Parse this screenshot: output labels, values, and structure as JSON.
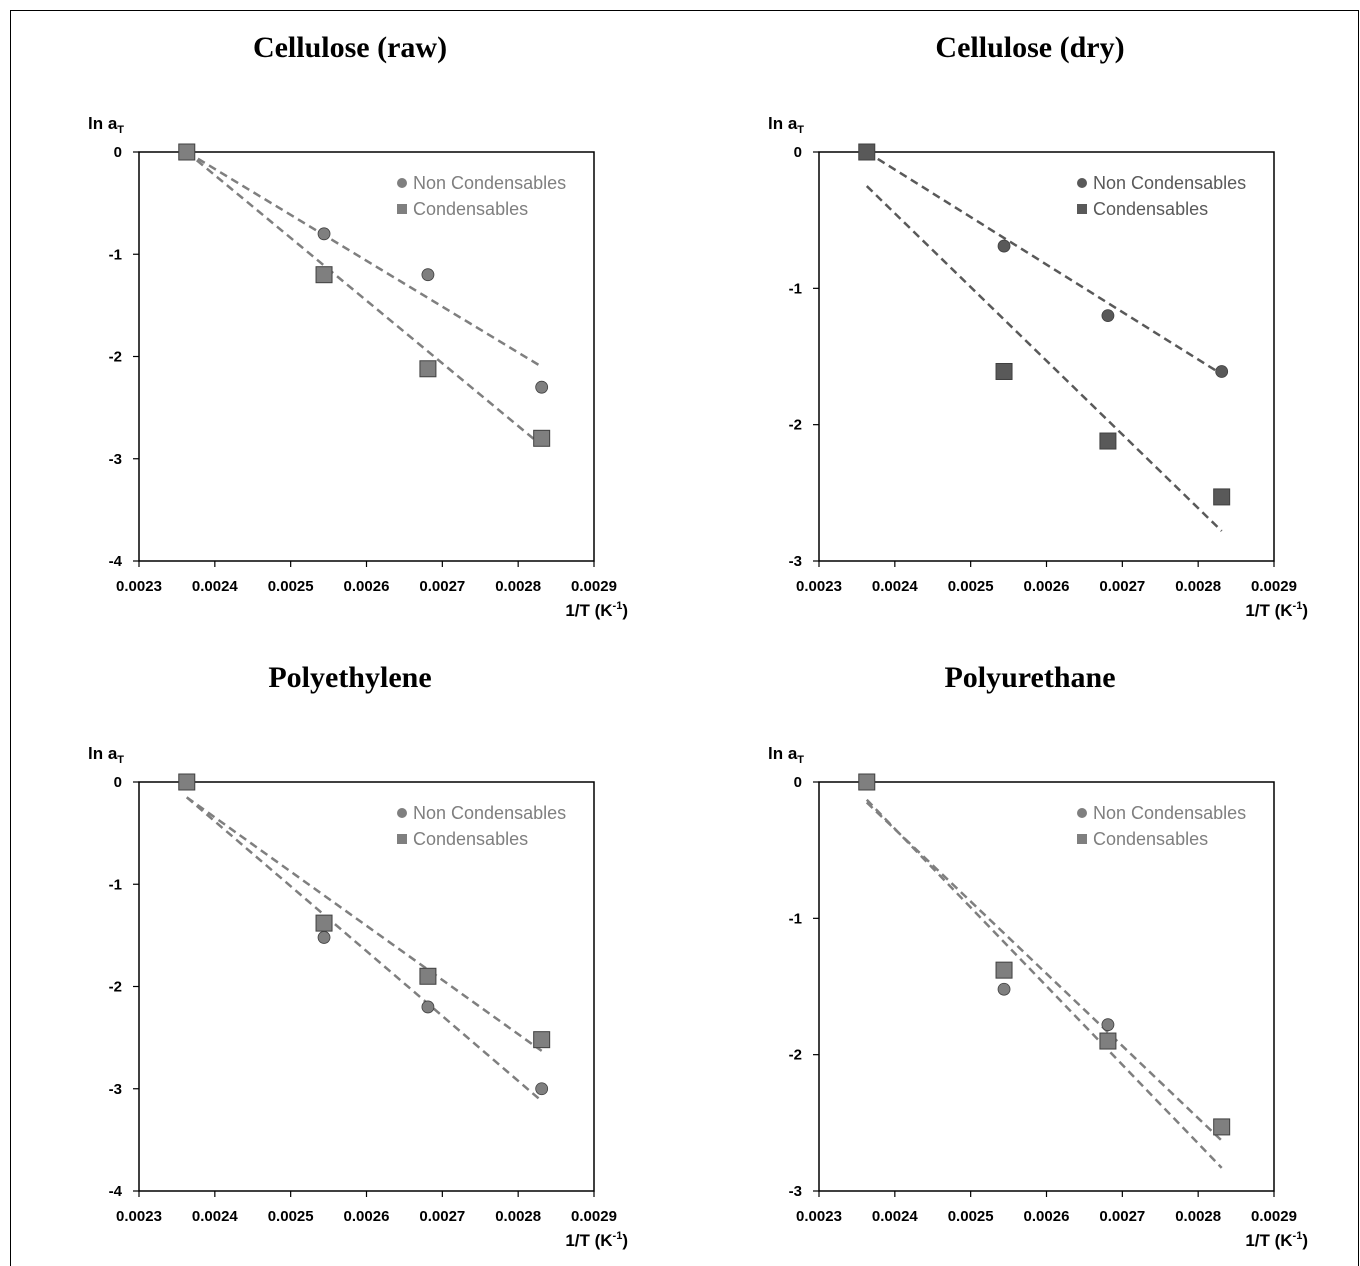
{
  "chart_data": [
    {
      "type": "scatter",
      "title": "Cellulose (raw)",
      "ylabel": "ln a",
      "ylabel_sub": "T",
      "xlabel": "1/T (K",
      "xlabel_sup": "-1",
      "xlabel_end": ")",
      "xlim": [
        0.0023,
        0.0029
      ],
      "ylim": [
        -4,
        0
      ],
      "xticks": [
        "0.0023",
        "0.0024",
        "0.0025",
        "0.0026",
        "0.0027",
        "0.0028",
        "0.0029"
      ],
      "yticks": [
        "0",
        "-1",
        "-2",
        "-3",
        "-4"
      ],
      "legend_position": "top-right",
      "color": "#7f7f7f",
      "series": [
        {
          "name": "Non Condensables",
          "marker": "circle",
          "x": [
            0.002363,
            0.002544,
            0.002681,
            0.002831
          ],
          "y": [
            0,
            -0.8,
            -1.2,
            -2.3
          ],
          "trend_x": [
            0.002363,
            0.002831
          ],
          "trend_y": [
            0,
            -2.1
          ]
        },
        {
          "name": "Condensables",
          "marker": "square",
          "x": [
            0.002363,
            0.002544,
            0.002681,
            0.002831
          ],
          "y": [
            0,
            -1.2,
            -2.12,
            -2.8
          ],
          "trend_x": [
            0.002363,
            0.002831
          ],
          "trend_y": [
            0,
            -2.87
          ]
        }
      ]
    },
    {
      "type": "scatter",
      "title": "Cellulose (dry)",
      "ylabel": "ln a",
      "ylabel_sub": "T",
      "xlabel": "1/T (K",
      "xlabel_sup": "-1",
      "xlabel_end": ")",
      "xlim": [
        0.0023,
        0.0029
      ],
      "ylim": [
        -3,
        0
      ],
      "xticks": [
        "0.0023",
        "0.0024",
        "0.0025",
        "0.0026",
        "0.0027",
        "0.0028",
        "0.0029"
      ],
      "yticks": [
        "0",
        "-1",
        "-2",
        "-3"
      ],
      "legend_position": "top-right",
      "color": "#595959",
      "series": [
        {
          "name": "Non Condensables",
          "marker": "circle",
          "x": [
            0.002363,
            0.002544,
            0.002681,
            0.002831
          ],
          "y": [
            0,
            -0.69,
            -1.2,
            -1.61
          ],
          "trend_x": [
            0.002363,
            0.002831
          ],
          "trend_y": [
            0,
            -1.63
          ]
        },
        {
          "name": "Condensables",
          "marker": "square",
          "x": [
            0.002363,
            0.002544,
            0.002681,
            0.002831
          ],
          "y": [
            0,
            -1.61,
            -2.12,
            -2.53
          ],
          "trend_x": [
            0.002363,
            0.002831
          ],
          "trend_y": [
            -0.25,
            -2.78
          ]
        }
      ]
    },
    {
      "type": "scatter",
      "title": "Polyethylene",
      "ylabel": "ln a",
      "ylabel_sub": "T",
      "xlabel": "1/T (K",
      "xlabel_sup": "-1",
      "xlabel_end": ")",
      "xlim": [
        0.0023,
        0.0029
      ],
      "ylim": [
        -4,
        0
      ],
      "xticks": [
        "0.0023",
        "0.0024",
        "0.0025",
        "0.0026",
        "0.0027",
        "0.0028",
        "0.0029"
      ],
      "yticks": [
        "0",
        "-1",
        "-2",
        "-3",
        "-4"
      ],
      "legend_position": "top-right",
      "color": "#7f7f7f",
      "series": [
        {
          "name": "Non Condensables",
          "marker": "circle",
          "x": [
            0.002363,
            0.002544,
            0.002681,
            0.002831
          ],
          "y": [
            0,
            -1.52,
            -2.2,
            -3.0
          ],
          "trend_x": [
            0.002363,
            0.002831
          ],
          "trend_y": [
            -0.15,
            -3.12
          ]
        },
        {
          "name": "Condensables",
          "marker": "square",
          "x": [
            0.002363,
            0.002544,
            0.002681,
            0.002831
          ],
          "y": [
            0,
            -1.38,
            -1.9,
            -2.52
          ],
          "trend_x": [
            0.002363,
            0.002831
          ],
          "trend_y": [
            -0.15,
            -2.63
          ]
        }
      ]
    },
    {
      "type": "scatter",
      "title": "Polyurethane",
      "ylabel": "ln a",
      "ylabel_sub": "T",
      "xlabel": "1/T (K",
      "xlabel_sup": "-1",
      "xlabel_end": ")",
      "xlim": [
        0.0023,
        0.0029
      ],
      "ylim": [
        -3,
        0
      ],
      "xticks": [
        "0.0023",
        "0.0024",
        "0.0025",
        "0.0026",
        "0.0027",
        "0.0028",
        "0.0029"
      ],
      "yticks": [
        "0",
        "-1",
        "-2",
        "-3"
      ],
      "legend_position": "top-right",
      "color": "#7f7f7f",
      "series": [
        {
          "name": "Non Condensables",
          "marker": "circle",
          "x": [
            0.002363,
            0.002544,
            0.002681,
            0.002831
          ],
          "y": [
            0,
            -1.52,
            -1.78,
            -2.53
          ],
          "trend_x": [
            0.002363,
            0.002831
          ],
          "trend_y": [
            -0.15,
            -2.63
          ]
        },
        {
          "name": "Condensables",
          "marker": "square",
          "x": [
            0.002363,
            0.002544,
            0.002681,
            0.002831
          ],
          "y": [
            0,
            -1.38,
            -1.9,
            -2.53
          ],
          "trend_x": [
            0.002363,
            0.002831
          ],
          "trend_y": [
            -0.13,
            -2.83
          ]
        }
      ]
    }
  ]
}
